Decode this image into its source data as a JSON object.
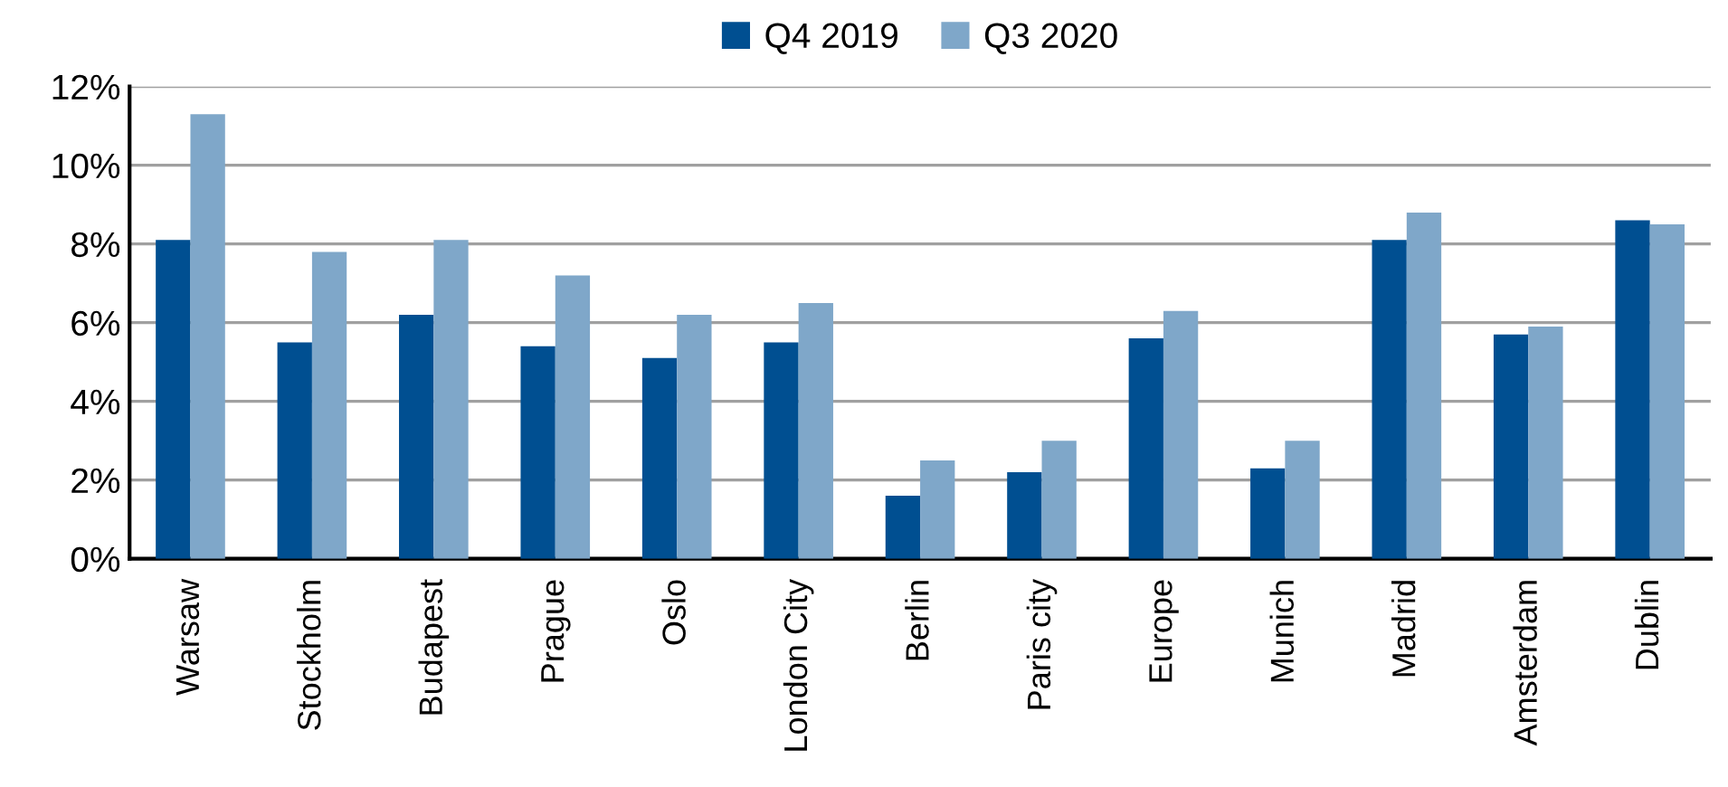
{
  "chart_data": {
    "type": "bar",
    "categories": [
      "Warsaw",
      "Stockholm",
      "Budapest",
      "Prague",
      "Oslo",
      "London City",
      "Berlin",
      "Paris city",
      "Europe",
      "Munich",
      "Madrid",
      "Amsterdam",
      "Dublin"
    ],
    "series": [
      {
        "name": "Q4 2019",
        "color": "#004f91",
        "values": [
          8.1,
          5.5,
          6.2,
          5.4,
          5.1,
          5.5,
          1.6,
          2.2,
          5.6,
          2.3,
          8.1,
          5.7,
          8.6
        ]
      },
      {
        "name": "Q3 2020",
        "color": "#7fa7c9",
        "values": [
          11.3,
          7.8,
          8.1,
          7.2,
          6.2,
          6.5,
          2.5,
          3.0,
          6.3,
          3.0,
          8.8,
          5.9,
          8.5
        ]
      }
    ],
    "ylim": [
      0,
      12
    ],
    "yticks": [
      {
        "value": 0,
        "label": "0%"
      },
      {
        "value": 2,
        "label": "2%"
      },
      {
        "value": 4,
        "label": "4%"
      },
      {
        "value": 6,
        "label": "6%"
      },
      {
        "value": 8,
        "label": "8%"
      },
      {
        "value": 10,
        "label": "10%"
      },
      {
        "value": 12,
        "label": "12%"
      }
    ],
    "grid": "y",
    "legend": "top"
  }
}
